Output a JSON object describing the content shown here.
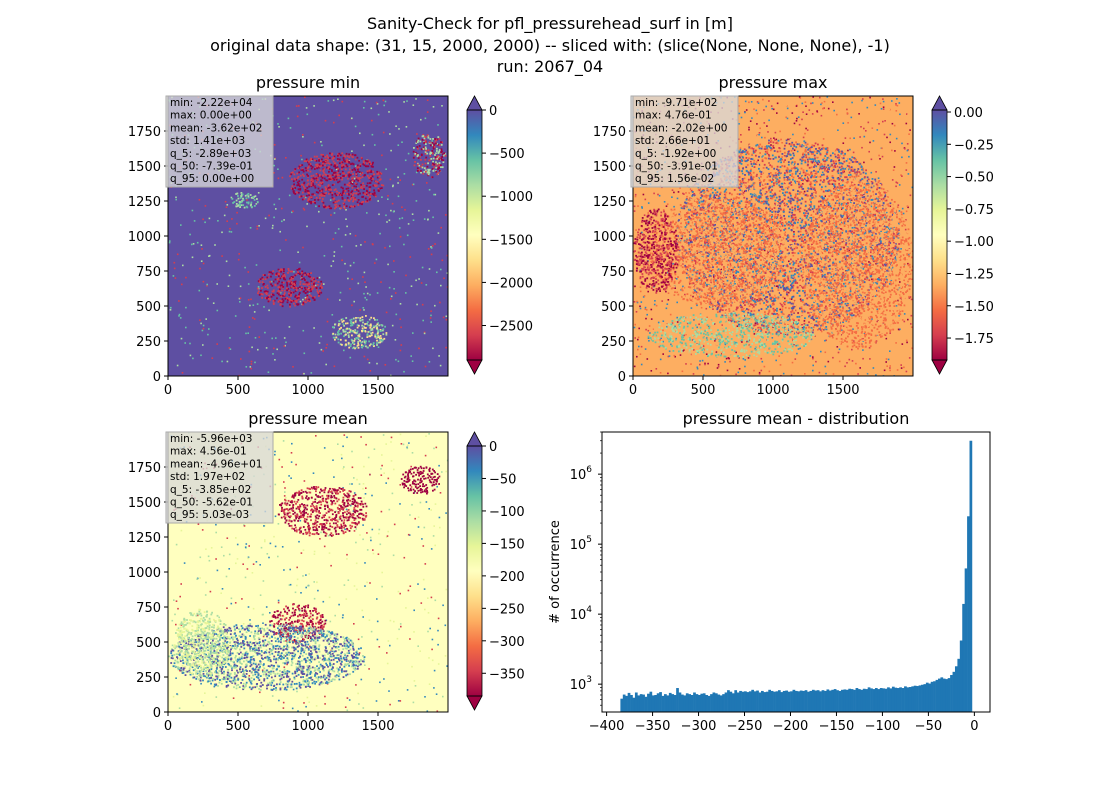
{
  "figure": {
    "title_lines": [
      "Sanity-Check for pfl_pressurehead_surf in [m]",
      "original data shape: (31, 15, 2000, 2000) -- sliced with: (slice(None, None, None), -1)",
      "run: 2067_04"
    ]
  },
  "colors": {
    "spectral": [
      "#9e0142",
      "#d53e4f",
      "#f46d43",
      "#fdae61",
      "#fee08b",
      "#ffffbf",
      "#e6f598",
      "#abdda4",
      "#66c2a5",
      "#3288bd",
      "#5e4fa2"
    ],
    "hist_bar": "#1f77b4",
    "stats_box_bg": "#d9d9d9",
    "stats_box_border": "#aaaaaa"
  },
  "panels": [
    {
      "id": "pressure_min",
      "title": "pressure min",
      "background": "#5e4fa2",
      "x_ticks": [
        "0",
        "500",
        "1000",
        "1500"
      ],
      "y_ticks": [
        "0",
        "250",
        "500",
        "750",
        "1000",
        "1250",
        "1500",
        "1750"
      ],
      "stats": [
        "min: -2.22e+04",
        "max: 0.00e+00",
        "mean: -3.62e+02",
        "std: 1.41e+03",
        "q_5: -2.89e+03",
        "q_50: -7.39e-01",
        "q_95: 0.00e+00"
      ],
      "colorbar": {
        "vmin": -2900,
        "vmax": 0,
        "ticks": [
          "0",
          "−500",
          "−1000",
          "−1500",
          "−2000",
          "−2500"
        ],
        "tick_values": [
          0,
          -500,
          -1000,
          -1500,
          -2000,
          -2500
        ],
        "extend": "both"
      }
    },
    {
      "id": "pressure_max",
      "title": "pressure max",
      "background": "#fdae61",
      "x_ticks": [
        "0",
        "500",
        "1000",
        "1500"
      ],
      "y_ticks": [
        "0",
        "250",
        "500",
        "750",
        "1000",
        "1250",
        "1500",
        "1750"
      ],
      "stats": [
        "min: -9.71e+02",
        "max: 4.76e-01",
        "mean: -2.02e+00",
        "std: 2.66e+01",
        "q_5: -1.92e+00",
        "q_50: -3.91e-01",
        "q_95: 1.56e-02"
      ],
      "colorbar": {
        "vmin": -1.92,
        "vmax": 0.0156,
        "ticks": [
          "0.00",
          "−0.25",
          "−0.50",
          "−0.75",
          "−1.00",
          "−1.25",
          "−1.50",
          "−1.75"
        ],
        "tick_values": [
          0,
          -0.25,
          -0.5,
          -0.75,
          -1.0,
          -1.25,
          -1.5,
          -1.75
        ],
        "extend": "both"
      }
    },
    {
      "id": "pressure_mean",
      "title": "pressure mean",
      "background": "#ffffbf",
      "x_ticks": [
        "0",
        "500",
        "1000",
        "1500"
      ],
      "y_ticks": [
        "0",
        "250",
        "500",
        "750",
        "1000",
        "1250",
        "1500",
        "1750"
      ],
      "stats": [
        "min: -5.96e+03",
        "max: 4.56e-01",
        "mean: -4.96e+01",
        "std: 1.97e+02",
        "q_5: -3.85e+02",
        "q_50: -5.62e-01",
        "q_95: 5.03e-03"
      ],
      "colorbar": {
        "vmin": -385,
        "vmax": 0.005,
        "ticks": [
          "0",
          "−50",
          "−100",
          "−150",
          "−200",
          "−250",
          "−300",
          "−350"
        ],
        "tick_values": [
          0,
          -50,
          -100,
          -150,
          -200,
          -250,
          -300,
          -350
        ],
        "extend": "both"
      }
    }
  ],
  "chart_data": {
    "type": "bar",
    "title": "pressure mean - distribution",
    "ylabel": "# of occurrence",
    "xlabel": "",
    "log_y": true,
    "xlim": [
      -405,
      17
    ],
    "ylim": [
      400,
      4000000
    ],
    "x_ticks": [
      "−400",
      "−350",
      "−300",
      "−250",
      "−200",
      "−150",
      "−100",
      "−50",
      "0"
    ],
    "x_tick_values": [
      -400,
      -350,
      -300,
      -250,
      -200,
      -150,
      -100,
      -50,
      0
    ],
    "y_ticks": [
      {
        "base": "10",
        "exp": "3",
        "value": 1000
      },
      {
        "base": "10",
        "exp": "4",
        "value": 10000
      },
      {
        "base": "10",
        "exp": "5",
        "value": 100000
      },
      {
        "base": "10",
        "exp": "6",
        "value": 1000000
      }
    ],
    "bin_range": [
      -385,
      0
    ],
    "counts": [
      620,
      710,
      680,
      750,
      700,
      640,
      760,
      690,
      720,
      710,
      660,
      730,
      780,
      690,
      700,
      740,
      770,
      680,
      720,
      690,
      750,
      720,
      700,
      880,
      760,
      710,
      690,
      740,
      720,
      700,
      760,
      720,
      700,
      730,
      740,
      700,
      680,
      720,
      760,
      740,
      710,
      690,
      720,
      760,
      820,
      780,
      740,
      820,
      760,
      800,
      780,
      790,
      770,
      790,
      830,
      790,
      810,
      760,
      800,
      770,
      780,
      830,
      800,
      780,
      790,
      820,
      770,
      800,
      810,
      780,
      790,
      830,
      800,
      790,
      810,
      800,
      820,
      780,
      800,
      830,
      810,
      820,
      790,
      820,
      800,
      840,
      810,
      830,
      850,
      820,
      800,
      830,
      840,
      830,
      860,
      850,
      830,
      880,
      850,
      830,
      860,
      850,
      900,
      870,
      850,
      880,
      850,
      880,
      870,
      860,
      900,
      870,
      920,
      890,
      880,
      900,
      880,
      930,
      900,
      910,
      930,
      950,
      940,
      960,
      980,
      1000,
      1050,
      1020,
      1080,
      1100,
      1150,
      1200,
      1250,
      1200,
      1180,
      1220,
      1350,
      1500,
      1800,
      2300,
      4200,
      14000,
      45000,
      250000,
      3000000,
      1
    ]
  }
}
